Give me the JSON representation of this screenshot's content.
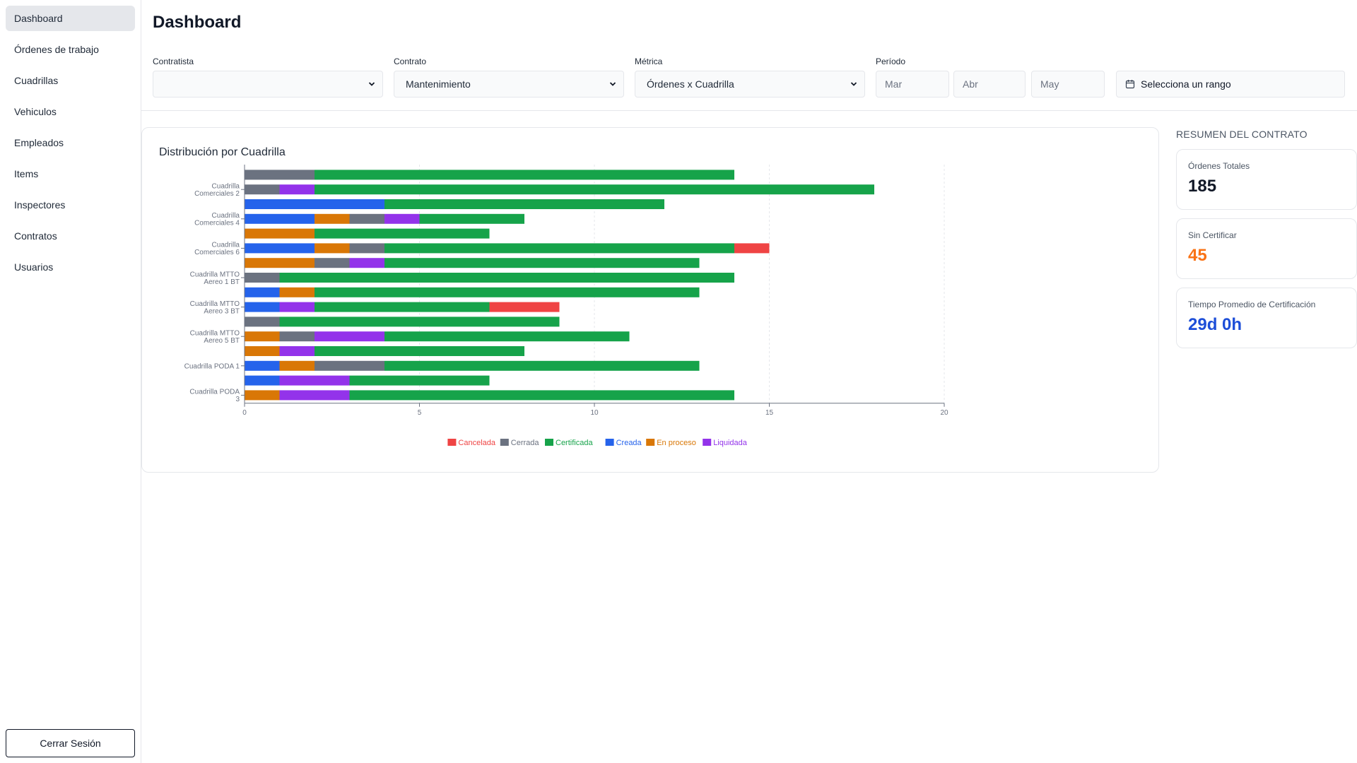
{
  "sidebar": {
    "items": [
      {
        "label": "Dashboard",
        "active": true
      },
      {
        "label": "Órdenes de trabajo"
      },
      {
        "label": "Cuadrillas"
      },
      {
        "label": "Vehiculos"
      },
      {
        "label": "Empleados"
      },
      {
        "label": "Items"
      },
      {
        "label": "Inspectores"
      },
      {
        "label": "Contratos"
      },
      {
        "label": "Usuarios"
      }
    ],
    "logout_label": "Cerrar Sesión"
  },
  "header": {
    "title": "Dashboard"
  },
  "filters": {
    "contratista": {
      "label": "Contratista",
      "value": ""
    },
    "contrato": {
      "label": "Contrato",
      "value": "Mantenimiento"
    },
    "metrica": {
      "label": "Métrica",
      "value": "Órdenes x Cuadrilla"
    },
    "periodo": {
      "label": "Período",
      "months": [
        "Mar",
        "Abr",
        "May"
      ]
    },
    "range_label": "Selecciona un rango"
  },
  "chart_card": {
    "title": "Distribución por Cuadrilla"
  },
  "summary": {
    "heading": "RESUMEN DEL CONTRATO",
    "cards": [
      {
        "label": "Órdenes Totales",
        "value": "185",
        "color": "#111827"
      },
      {
        "label": "Sin Certificar",
        "value": "45",
        "color": "#f97316"
      },
      {
        "label": "Tiempo Promedio de Certificación",
        "value": "29d 0h",
        "color": "#1d4ed8"
      }
    ]
  },
  "chart_data": {
    "type": "bar",
    "orientation": "horizontal",
    "stacked": true,
    "xlim": [
      0,
      20
    ],
    "x_ticks": [
      0,
      5,
      10,
      15,
      20
    ],
    "grid": true,
    "legend_position": "bottom",
    "colors": {
      "Cancelada": "#ef4444",
      "Cerrada": "#6b7280",
      "Certificada": "#16a34a",
      "Creada": "#2563eb",
      "En proceso": "#d97706",
      "Liquidada": "#9333ea"
    },
    "series_order": [
      "Creada",
      "En proceso",
      "Cerrada",
      "Liquidada",
      "Certificada",
      "Cancelada"
    ],
    "legend": [
      "Cancelada",
      "Cerrada",
      "Certificada",
      "Creada",
      "En proceso",
      "Liquidada"
    ],
    "tick_labels": [
      {
        "lines": [
          "Cuadrilla",
          "Comerciales 2"
        ],
        "row": 1
      },
      {
        "lines": [
          "Cuadrilla",
          "Comerciales 4"
        ],
        "row": 3
      },
      {
        "lines": [
          "Cuadrilla",
          "Comerciales 6"
        ],
        "row": 5
      },
      {
        "lines": [
          "Cuadrilla MTTO",
          "Aereo 1 BT"
        ],
        "row": 7
      },
      {
        "lines": [
          "Cuadrilla MTTO",
          "Aereo 3 BT"
        ],
        "row": 9
      },
      {
        "lines": [
          "Cuadrilla MTTO",
          "Aereo 5 BT"
        ],
        "row": 11
      },
      {
        "lines": [
          "Cuadrilla PODA 1"
        ],
        "row": 13
      },
      {
        "lines": [
          "Cuadrilla PODA",
          "3"
        ],
        "row": 15
      }
    ],
    "rows": [
      {
        "Cerrada": 2,
        "Certificada": 12
      },
      {
        "Cerrada": 1,
        "Liquidada": 1,
        "Certificada": 16
      },
      {
        "Creada": 4,
        "Certificada": 8
      },
      {
        "Creada": 2,
        "En proceso": 1,
        "Cerrada": 1,
        "Liquidada": 1,
        "Certificada": 3
      },
      {
        "En proceso": 2,
        "Certificada": 5
      },
      {
        "Creada": 2,
        "En proceso": 1,
        "Cerrada": 1,
        "Certificada": 10,
        "Cancelada": 1
      },
      {
        "En proceso": 2,
        "Cerrada": 1,
        "Liquidada": 1,
        "Certificada": 9
      },
      {
        "Cerrada": 1,
        "Certificada": 13
      },
      {
        "Creada": 1,
        "En proceso": 1,
        "Certificada": 11
      },
      {
        "Creada": 1,
        "Liquidada": 1,
        "Certificada": 5,
        "Cancelada": 2
      },
      {
        "Cerrada": 1,
        "Certificada": 8
      },
      {
        "En proceso": 1,
        "Cerrada": 1,
        "Liquidada": 2,
        "Certificada": 7
      },
      {
        "En proceso": 1,
        "Liquidada": 1,
        "Certificada": 6
      },
      {
        "Creada": 1,
        "En proceso": 1,
        "Cerrada": 2,
        "Certificada": 9
      },
      {
        "Creada": 1,
        "Liquidada": 2,
        "Certificada": 4
      },
      {
        "En proceso": 1,
        "Liquidada": 2,
        "Certificada": 11
      }
    ]
  }
}
